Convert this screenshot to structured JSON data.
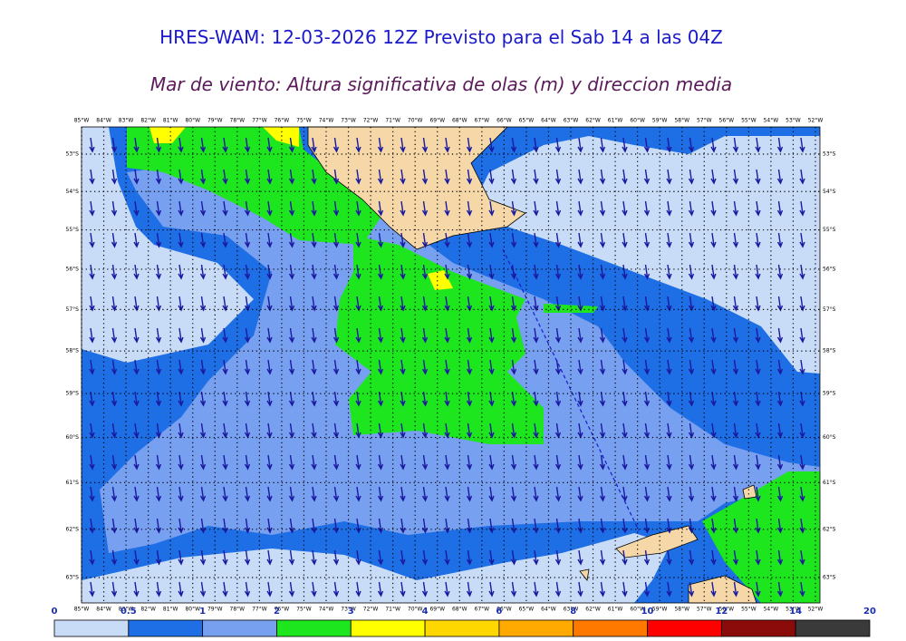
{
  "header": {
    "title": "HRES-WAM: 12-03-2026 12Z Previsto para el Sab 14 a las 04Z",
    "subtitle": "Mar de viento: Altura significativa de olas (m) y direccion media"
  },
  "map": {
    "lon_ticks": [
      {
        "value": -85,
        "label": "85°W"
      },
      {
        "value": -84,
        "label": "84°W"
      },
      {
        "value": -83,
        "label": "83°W"
      },
      {
        "value": -82,
        "label": "82°W"
      },
      {
        "value": -81,
        "label": "81°W"
      },
      {
        "value": -80,
        "label": "80°W"
      },
      {
        "value": -79,
        "label": "79°W"
      },
      {
        "value": -78,
        "label": "78°W"
      },
      {
        "value": -77,
        "label": "77°W"
      },
      {
        "value": -76,
        "label": "76°W"
      },
      {
        "value": -75,
        "label": "75°W"
      },
      {
        "value": -74,
        "label": "74°W"
      },
      {
        "value": -73,
        "label": "73°W"
      },
      {
        "value": -72,
        "label": "72°W"
      },
      {
        "value": -71,
        "label": "71°W"
      },
      {
        "value": -70,
        "label": "70°W"
      },
      {
        "value": -69,
        "label": "69°W"
      },
      {
        "value": -68,
        "label": "68°W"
      },
      {
        "value": -67,
        "label": "67°W"
      },
      {
        "value": -66,
        "label": "66°W"
      },
      {
        "value": -65,
        "label": "65°W"
      },
      {
        "value": -64,
        "label": "64°W"
      },
      {
        "value": -63,
        "label": "63°W"
      },
      {
        "value": -62,
        "label": "62°W"
      },
      {
        "value": -61,
        "label": "61°W"
      },
      {
        "value": -60,
        "label": "60°W"
      },
      {
        "value": -59,
        "label": "59°W"
      },
      {
        "value": -58,
        "label": "58°W"
      },
      {
        "value": -57,
        "label": "57°W"
      },
      {
        "value": -56,
        "label": "56°W"
      },
      {
        "value": -55,
        "label": "55°W"
      },
      {
        "value": -54,
        "label": "54°W"
      },
      {
        "value": -53,
        "label": "53°W"
      },
      {
        "value": -52,
        "label": "52°W"
      }
    ],
    "lat_ticks": [
      {
        "value": -53,
        "label": "53°S"
      },
      {
        "value": -54,
        "label": "54°S"
      },
      {
        "value": -55,
        "label": "55°S"
      },
      {
        "value": -56,
        "label": "56°S"
      },
      {
        "value": -57,
        "label": "57°S"
      },
      {
        "value": -58,
        "label": "58°S"
      },
      {
        "value": -59,
        "label": "59°S"
      },
      {
        "value": -60,
        "label": "60°S"
      },
      {
        "value": -61,
        "label": "61°S"
      },
      {
        "value": -62,
        "label": "62°S"
      },
      {
        "value": -63,
        "label": "63°S"
      }
    ]
  },
  "colorbar": {
    "levels": [
      0,
      0.5,
      1,
      2,
      3,
      4,
      6,
      8,
      10,
      12,
      14,
      20
    ],
    "colors": [
      "#c8dcf8",
      "#1e6ee6",
      "#78a0f0",
      "#1ee61e",
      "#ffff00",
      "#ffd700",
      "#ffaa00",
      "#ff7800",
      "#ff0000",
      "#8b0a0a",
      "#3a3a3a"
    ]
  }
}
